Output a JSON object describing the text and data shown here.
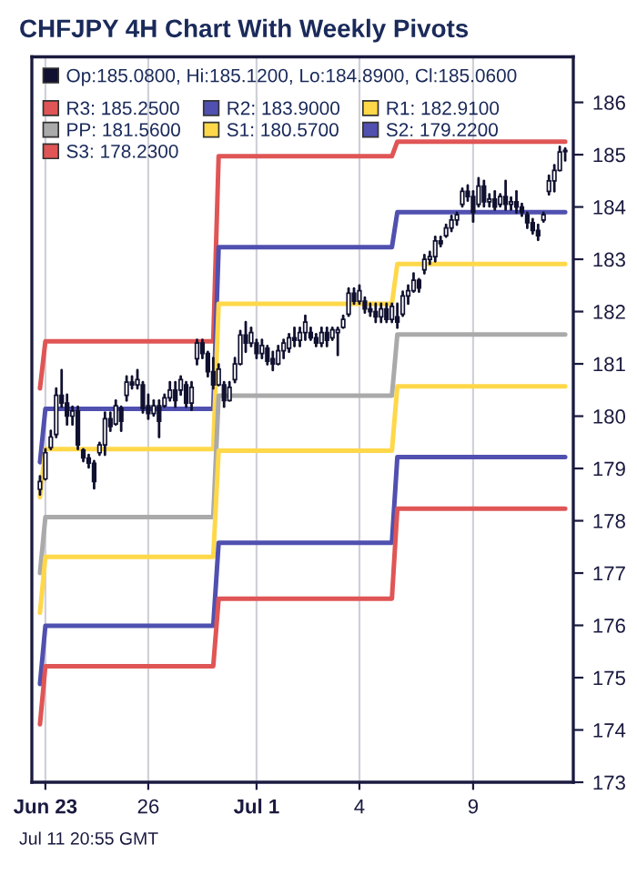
{
  "chart_data": {
    "type": "candlestick",
    "title": "CHFJPY 4H Chart With Weekly Pivots",
    "annotations": [
      "Jul 11 20:55 GMT"
    ],
    "categories": [
      null,
      "Jun 23",
      null,
      null,
      null,
      null,
      null,
      null,
      null,
      null,
      null,
      null,
      null,
      null,
      null,
      null,
      null,
      null,
      null,
      null,
      "26",
      null,
      null,
      null,
      null,
      null,
      null,
      null,
      null,
      null,
      null,
      null,
      null,
      null,
      null,
      null,
      null,
      null,
      null,
      null,
      "Jul 1",
      null,
      null,
      null,
      null,
      null,
      null,
      null,
      null,
      null,
      null,
      null,
      null,
      null,
      null,
      null,
      null,
      null,
      null,
      "4",
      null,
      null,
      null,
      null,
      null,
      null,
      null,
      null,
      null,
      null,
      null,
      null,
      null,
      null,
      null,
      null,
      null,
      null,
      null,
      null,
      "9",
      null,
      null,
      null,
      null,
      null,
      null,
      null,
      null,
      null,
      null,
      null,
      null,
      null,
      null,
      null,
      null,
      null
    ],
    "ylim": [
      173,
      186.87
    ],
    "yticks": [
      173,
      174,
      175,
      176,
      177,
      178,
      179,
      180,
      181,
      182,
      183,
      184,
      185,
      186
    ],
    "grid": "x",
    "legend": "top left",
    "series": [
      {
        "name": "Op:185.0800, Hi:185.1200, Lo:184.8900, Cl:185.0600",
        "color": "#101030",
        "ohlc": [
          [
            178.6,
            178.85,
            178.5,
            178.75
          ],
          [
            178.8,
            179.37,
            178.79,
            179.3
          ],
          [
            179.4,
            179.72,
            179.37,
            179.6
          ],
          [
            179.65,
            180.53,
            179.6,
            180.4
          ],
          [
            180.4,
            180.88,
            180.18,
            180.25
          ],
          [
            180.25,
            180.41,
            179.84,
            180.0
          ],
          [
            180.0,
            180.18,
            179.84,
            180.1
          ],
          [
            180.1,
            180.18,
            179.37,
            179.45
          ],
          [
            179.35,
            179.37,
            179.14,
            179.2
          ],
          [
            179.2,
            179.26,
            179.02,
            179.1
          ],
          [
            179.1,
            179.14,
            178.62,
            178.75
          ],
          [
            179.3,
            179.49,
            179.26,
            179.45
          ],
          [
            179.45,
            180.07,
            179.26,
            179.95
          ],
          [
            179.95,
            180.07,
            179.72,
            179.8
          ],
          [
            179.85,
            180.3,
            179.84,
            180.2
          ],
          [
            180.15,
            180.18,
            179.72,
            179.9
          ],
          [
            180.4,
            180.76,
            180.3,
            180.65
          ],
          [
            180.65,
            180.76,
            180.53,
            180.6
          ],
          [
            180.6,
            180.88,
            180.53,
            180.7
          ],
          [
            180.6,
            180.65,
            180.07,
            180.15
          ],
          [
            180.2,
            180.41,
            179.95,
            180.05
          ],
          [
            180.05,
            180.3,
            180.01,
            180.2
          ],
          [
            180.2,
            180.3,
            179.6,
            179.9
          ],
          [
            180.2,
            180.41,
            180.18,
            180.35
          ],
          [
            180.35,
            180.65,
            180.3,
            180.5
          ],
          [
            180.5,
            180.65,
            180.18,
            180.3
          ],
          [
            180.5,
            180.76,
            180.41,
            180.7
          ],
          [
            180.6,
            180.65,
            180.18,
            180.25
          ],
          [
            180.25,
            180.65,
            180.12,
            180.55
          ],
          [
            181.1,
            181.46,
            180.99,
            181.4
          ],
          [
            181.4,
            181.46,
            181.11,
            181.2
          ],
          [
            181.2,
            181.23,
            180.76,
            180.85
          ],
          [
            180.85,
            181.11,
            180.53,
            180.6
          ],
          [
            180.6,
            180.99,
            180.59,
            180.9
          ],
          [
            180.6,
            180.65,
            180.18,
            180.3
          ],
          [
            180.3,
            180.65,
            180.3,
            180.55
          ],
          [
            180.7,
            181.11,
            180.65,
            181.0
          ],
          [
            181.0,
            181.63,
            180.99,
            181.55
          ],
          [
            181.55,
            181.8,
            181.23,
            181.4
          ],
          [
            181.4,
            181.69,
            181.34,
            181.6
          ],
          [
            181.4,
            181.46,
            181.11,
            181.2
          ],
          [
            181.2,
            181.46,
            181.11,
            181.35
          ],
          [
            181.3,
            181.34,
            180.99,
            181.05
          ],
          [
            181.1,
            181.23,
            180.88,
            181.0
          ],
          [
            181.0,
            181.34,
            180.99,
            181.25
          ],
          [
            181.25,
            181.46,
            181.11,
            181.4
          ],
          [
            181.3,
            181.57,
            181.23,
            181.5
          ],
          [
            181.5,
            181.69,
            181.34,
            181.45
          ],
          [
            181.45,
            181.69,
            181.34,
            181.6
          ],
          [
            181.6,
            181.92,
            181.46,
            181.8
          ],
          [
            181.6,
            181.69,
            181.46,
            181.5
          ],
          [
            181.5,
            181.57,
            181.34,
            181.4
          ],
          [
            181.4,
            181.69,
            181.34,
            181.6
          ],
          [
            181.6,
            181.69,
            181.34,
            181.45
          ],
          [
            181.5,
            181.69,
            181.46,
            181.65
          ],
          [
            181.6,
            181.69,
            181.17,
            181.65
          ],
          [
            181.7,
            181.92,
            181.69,
            181.85
          ],
          [
            181.95,
            182.44,
            181.92,
            182.35
          ],
          [
            182.35,
            182.44,
            182.15,
            182.2
          ],
          [
            182.2,
            182.5,
            182.15,
            182.4
          ],
          [
            182.2,
            182.27,
            181.98,
            182.05
          ],
          [
            182.05,
            182.15,
            181.92,
            182.0
          ],
          [
            182.0,
            182.15,
            181.8,
            181.9
          ],
          [
            181.9,
            182.15,
            181.8,
            182.05
          ],
          [
            182.05,
            182.15,
            181.8,
            181.85
          ],
          [
            181.85,
            182.15,
            181.8,
            182.1
          ],
          [
            181.9,
            182.15,
            181.69,
            181.8
          ],
          [
            181.95,
            182.38,
            181.92,
            182.3
          ],
          [
            182.3,
            182.5,
            182.15,
            182.4
          ],
          [
            182.4,
            182.73,
            182.38,
            182.6
          ],
          [
            182.6,
            182.62,
            182.38,
            182.45
          ],
          [
            182.8,
            183.08,
            182.73,
            183.0
          ],
          [
            183.0,
            183.14,
            182.91,
            183.05
          ],
          [
            183.05,
            183.43,
            182.96,
            183.35
          ],
          [
            183.35,
            183.43,
            183.25,
            183.3
          ],
          [
            183.45,
            183.66,
            183.43,
            183.6
          ],
          [
            183.6,
            183.83,
            183.54,
            183.75
          ],
          [
            183.75,
            183.89,
            183.66,
            183.85
          ],
          [
            184.05,
            184.35,
            184.01,
            184.3
          ],
          [
            184.3,
            184.41,
            184.12,
            184.2
          ],
          [
            184.2,
            184.3,
            183.72,
            183.9
          ],
          [
            184.05,
            184.55,
            184.01,
            184.4
          ],
          [
            184.4,
            184.5,
            184.01,
            184.1
          ],
          [
            184.1,
            184.24,
            184.01,
            184.15
          ],
          [
            184.15,
            184.3,
            183.95,
            184.0
          ],
          [
            184.05,
            184.24,
            184.01,
            184.2
          ],
          [
            184.2,
            184.5,
            183.95,
            184.05
          ],
          [
            184.05,
            184.18,
            183.95,
            184.1
          ],
          [
            184.1,
            184.3,
            183.89,
            184.0
          ],
          [
            184.0,
            184.06,
            183.83,
            183.9
          ],
          [
            183.85,
            183.89,
            183.6,
            183.7
          ],
          [
            183.7,
            183.77,
            183.49,
            183.55
          ],
          [
            183.55,
            183.66,
            183.37,
            183.45
          ],
          [
            183.75,
            183.89,
            183.72,
            183.85
          ],
          [
            184.3,
            184.6,
            184.24,
            184.5
          ],
          [
            184.5,
            184.8,
            184.3,
            184.7
          ],
          [
            184.7,
            185.15,
            184.7,
            185.05
          ],
          [
            185.08,
            185.12,
            184.89,
            185.06
          ]
        ]
      },
      {
        "type": "line",
        "name": "R3: 185.2500",
        "color": "#e05555",
        "values": [
          180.53,
          181.43,
          181.43,
          181.43,
          181.43,
          181.43,
          181.43,
          181.43,
          181.43,
          181.43,
          181.43,
          181.43,
          181.43,
          181.43,
          181.43,
          181.43,
          181.43,
          181.43,
          181.43,
          181.43,
          181.43,
          181.43,
          181.43,
          181.43,
          181.43,
          181.43,
          181.43,
          181.43,
          181.43,
          181.43,
          181.43,
          181.43,
          181.43,
          184.97,
          184.97,
          184.97,
          184.97,
          184.97,
          184.97,
          184.97,
          184.97,
          184.97,
          184.97,
          184.97,
          184.97,
          184.97,
          184.97,
          184.97,
          184.97,
          184.97,
          184.97,
          184.97,
          184.97,
          184.97,
          184.97,
          184.97,
          184.97,
          184.97,
          184.97,
          184.97,
          184.97,
          184.97,
          184.97,
          184.97,
          184.97,
          184.97,
          185.25,
          185.25,
          185.25,
          185.25,
          185.25,
          185.25,
          185.25,
          185.25,
          185.25,
          185.25,
          185.25,
          185.25,
          185.25,
          185.25,
          185.25,
          185.25,
          185.25,
          185.25,
          185.25,
          185.25,
          185.25,
          185.25,
          185.25,
          185.25,
          185.25,
          185.25,
          185.25,
          185.25,
          185.25,
          185.25,
          185.25,
          185.25
        ]
      },
      {
        "type": "line",
        "name": "R2: 183.9000",
        "color": "#5050b0",
        "values": [
          179.12,
          180.14,
          180.14,
          180.14,
          180.14,
          180.14,
          180.14,
          180.14,
          180.14,
          180.14,
          180.14,
          180.14,
          180.14,
          180.14,
          180.14,
          180.14,
          180.14,
          180.14,
          180.14,
          180.14,
          180.14,
          180.14,
          180.14,
          180.14,
          180.14,
          180.14,
          180.14,
          180.14,
          180.14,
          180.14,
          180.14,
          180.14,
          180.14,
          183.23,
          183.23,
          183.23,
          183.23,
          183.23,
          183.23,
          183.23,
          183.23,
          183.23,
          183.23,
          183.23,
          183.23,
          183.23,
          183.23,
          183.23,
          183.23,
          183.23,
          183.23,
          183.23,
          183.23,
          183.23,
          183.23,
          183.23,
          183.23,
          183.23,
          183.23,
          183.23,
          183.23,
          183.23,
          183.23,
          183.23,
          183.23,
          183.23,
          183.9,
          183.9,
          183.9,
          183.9,
          183.9,
          183.9,
          183.9,
          183.9,
          183.9,
          183.9,
          183.9,
          183.9,
          183.9,
          183.9,
          183.9,
          183.9,
          183.9,
          183.9,
          183.9,
          183.9,
          183.9,
          183.9,
          183.9,
          183.9,
          183.9,
          183.9,
          183.9,
          183.9,
          183.9,
          183.9,
          183.9,
          183.9
        ]
      },
      {
        "type": "line",
        "name": "R1: 182.9100",
        "color": "#ffd84a",
        "values": [
          178.45,
          179.37,
          179.37,
          179.37,
          179.37,
          179.37,
          179.37,
          179.37,
          179.37,
          179.37,
          179.37,
          179.37,
          179.37,
          179.37,
          179.37,
          179.37,
          179.37,
          179.37,
          179.37,
          179.37,
          179.37,
          179.37,
          179.37,
          179.37,
          179.37,
          179.37,
          179.37,
          179.37,
          179.37,
          179.37,
          179.37,
          179.37,
          179.37,
          182.15,
          182.15,
          182.15,
          182.15,
          182.15,
          182.15,
          182.15,
          182.15,
          182.15,
          182.15,
          182.15,
          182.15,
          182.15,
          182.15,
          182.15,
          182.15,
          182.15,
          182.15,
          182.15,
          182.15,
          182.15,
          182.15,
          182.15,
          182.15,
          182.15,
          182.15,
          182.15,
          182.15,
          182.15,
          182.15,
          182.15,
          182.15,
          182.15,
          182.91,
          182.91,
          182.91,
          182.91,
          182.91,
          182.91,
          182.91,
          182.91,
          182.91,
          182.91,
          182.91,
          182.91,
          182.91,
          182.91,
          182.91,
          182.91,
          182.91,
          182.91,
          182.91,
          182.91,
          182.91,
          182.91,
          182.91,
          182.91,
          182.91,
          182.91,
          182.91,
          182.91,
          182.91,
          182.91,
          182.91,
          182.91
        ]
      },
      {
        "type": "line",
        "name": "PP: 181.5600",
        "color": "#aaaaaa",
        "values": [
          177.0,
          178.07,
          178.07,
          178.07,
          178.07,
          178.07,
          178.07,
          178.07,
          178.07,
          178.07,
          178.07,
          178.07,
          178.07,
          178.07,
          178.07,
          178.07,
          178.07,
          178.07,
          178.07,
          178.07,
          178.07,
          178.07,
          178.07,
          178.07,
          178.07,
          178.07,
          178.07,
          178.07,
          178.07,
          178.07,
          178.07,
          178.07,
          178.07,
          180.39,
          180.39,
          180.39,
          180.39,
          180.39,
          180.39,
          180.39,
          180.39,
          180.39,
          180.39,
          180.39,
          180.39,
          180.39,
          180.39,
          180.39,
          180.39,
          180.39,
          180.39,
          180.39,
          180.39,
          180.39,
          180.39,
          180.39,
          180.39,
          180.39,
          180.39,
          180.39,
          180.39,
          180.39,
          180.39,
          180.39,
          180.39,
          180.39,
          181.56,
          181.56,
          181.56,
          181.56,
          181.56,
          181.56,
          181.56,
          181.56,
          181.56,
          181.56,
          181.56,
          181.56,
          181.56,
          181.56,
          181.56,
          181.56,
          181.56,
          181.56,
          181.56,
          181.56,
          181.56,
          181.56,
          181.56,
          181.56,
          181.56,
          181.56,
          181.56,
          181.56,
          181.56,
          181.56,
          181.56,
          181.56
        ]
      },
      {
        "type": "line",
        "name": "S1: 180.5700",
        "color": "#ffd84a",
        "values": [
          176.24,
          177.31,
          177.31,
          177.31,
          177.31,
          177.31,
          177.31,
          177.31,
          177.31,
          177.31,
          177.31,
          177.31,
          177.31,
          177.31,
          177.31,
          177.31,
          177.31,
          177.31,
          177.31,
          177.31,
          177.31,
          177.31,
          177.31,
          177.31,
          177.31,
          177.31,
          177.31,
          177.31,
          177.31,
          177.31,
          177.31,
          177.31,
          177.31,
          179.34,
          179.34,
          179.34,
          179.34,
          179.34,
          179.34,
          179.34,
          179.34,
          179.34,
          179.34,
          179.34,
          179.34,
          179.34,
          179.34,
          179.34,
          179.34,
          179.34,
          179.34,
          179.34,
          179.34,
          179.34,
          179.34,
          179.34,
          179.34,
          179.34,
          179.34,
          179.34,
          179.34,
          179.34,
          179.34,
          179.34,
          179.34,
          179.34,
          180.57,
          180.57,
          180.57,
          180.57,
          180.57,
          180.57,
          180.57,
          180.57,
          180.57,
          180.57,
          180.57,
          180.57,
          180.57,
          180.57,
          180.57,
          180.57,
          180.57,
          180.57,
          180.57,
          180.57,
          180.57,
          180.57,
          180.57,
          180.57,
          180.57,
          180.57,
          180.57,
          180.57,
          180.57,
          180.57,
          180.57,
          180.57
        ]
      },
      {
        "type": "line",
        "name": "S2: 179.2200",
        "color": "#5050b0",
        "values": [
          174.88,
          175.99,
          175.99,
          175.99,
          175.99,
          175.99,
          175.99,
          175.99,
          175.99,
          175.99,
          175.99,
          175.99,
          175.99,
          175.99,
          175.99,
          175.99,
          175.99,
          175.99,
          175.99,
          175.99,
          175.99,
          175.99,
          175.99,
          175.99,
          175.99,
          175.99,
          175.99,
          175.99,
          175.99,
          175.99,
          175.99,
          175.99,
          175.99,
          177.58,
          177.58,
          177.58,
          177.58,
          177.58,
          177.58,
          177.58,
          177.58,
          177.58,
          177.58,
          177.58,
          177.58,
          177.58,
          177.58,
          177.58,
          177.58,
          177.58,
          177.58,
          177.58,
          177.58,
          177.58,
          177.58,
          177.58,
          177.58,
          177.58,
          177.58,
          177.58,
          177.58,
          177.58,
          177.58,
          177.58,
          177.58,
          177.58,
          179.22,
          179.22,
          179.22,
          179.22,
          179.22,
          179.22,
          179.22,
          179.22,
          179.22,
          179.22,
          179.22,
          179.22,
          179.22,
          179.22,
          179.22,
          179.22,
          179.22,
          179.22,
          179.22,
          179.22,
          179.22,
          179.22,
          179.22,
          179.22,
          179.22,
          179.22,
          179.22,
          179.22,
          179.22,
          179.22,
          179.22,
          179.22
        ]
      },
      {
        "type": "line",
        "name": "S3: 178.2300",
        "color": "#e05555",
        "values": [
          174.11,
          175.22,
          175.22,
          175.22,
          175.22,
          175.22,
          175.22,
          175.22,
          175.22,
          175.22,
          175.22,
          175.22,
          175.22,
          175.22,
          175.22,
          175.22,
          175.22,
          175.22,
          175.22,
          175.22,
          175.22,
          175.22,
          175.22,
          175.22,
          175.22,
          175.22,
          175.22,
          175.22,
          175.22,
          175.22,
          175.22,
          175.22,
          175.22,
          176.51,
          176.51,
          176.51,
          176.51,
          176.51,
          176.51,
          176.51,
          176.51,
          176.51,
          176.51,
          176.51,
          176.51,
          176.51,
          176.51,
          176.51,
          176.51,
          176.51,
          176.51,
          176.51,
          176.51,
          176.51,
          176.51,
          176.51,
          176.51,
          176.51,
          176.51,
          176.51,
          176.51,
          176.51,
          176.51,
          176.51,
          176.51,
          176.51,
          178.23,
          178.23,
          178.23,
          178.23,
          178.23,
          178.23,
          178.23,
          178.23,
          178.23,
          178.23,
          178.23,
          178.23,
          178.23,
          178.23,
          178.23,
          178.23,
          178.23,
          178.23,
          178.23,
          178.23,
          178.23,
          178.23,
          178.23,
          178.23,
          178.23,
          178.23,
          178.23,
          178.23,
          178.23,
          178.23,
          178.23,
          178.23
        ]
      }
    ]
  }
}
